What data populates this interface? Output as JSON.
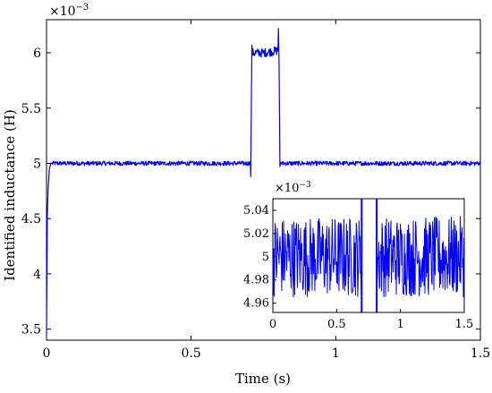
{
  "chart_data": [
    {
      "type": "line",
      "xlabel": "Time (s)",
      "ylabel": "Identified inductance (H)",
      "y_multiplier": "×10",
      "y_exponent": "−3",
      "xlim": [
        0,
        1.5
      ],
      "ylim": [
        3.4,
        6.3
      ],
      "xticks": [
        0,
        0.5,
        1,
        1.5
      ],
      "xtick_labels": [
        "0",
        "0.5",
        "1",
        "1.5"
      ],
      "yticks": [
        3.5,
        4,
        4.5,
        5,
        5.5,
        6
      ],
      "ytick_labels": [
        "3.5",
        "4",
        "4.5",
        "5",
        "5.5",
        "6"
      ],
      "grid": false,
      "color": "#0000ff",
      "series": [
        {
          "x": [
            0,
            0.003,
            0.006,
            0.01,
            0.015,
            0.02,
            0.3,
            0.6,
            0.705,
            0.706,
            0.71,
            0.712,
            0.75,
            0.8,
            0.802,
            0.804,
            0.807,
            0.81,
            0.813,
            1.0,
            1.2,
            1.5
          ],
          "y": [
            3.45,
            4.55,
            4.8,
            4.95,
            5.0,
            5.0,
            5.0,
            5.0,
            5.0,
            4.88,
            6.07,
            6.0,
            6.0,
            6.02,
            6.22,
            5.9,
            4.97,
            5.01,
            5.0,
            5.0,
            5.0,
            5.0
          ],
          "noise_amplitude_low": 0.02,
          "noise_amplitude_high": 0.04
        }
      ]
    },
    {
      "type": "line",
      "inset": true,
      "y_multiplier": "×10",
      "y_exponent": "−3",
      "xlim": [
        0,
        1.5
      ],
      "ylim": [
        4.952,
        5.05
      ],
      "xticks": [
        0,
        0.5,
        1,
        1.5
      ],
      "xtick_labels": [
        "0",
        "0.5",
        "1",
        "1.5"
      ],
      "yticks": [
        4.96,
        4.98,
        5,
        5.02,
        5.04
      ],
      "ytick_labels": [
        "4.96",
        "4.98",
        "5",
        "5.02",
        "5.04"
      ],
      "gap": [
        0.7,
        0.81
      ],
      "noise_center": 5.0,
      "noise_amplitude": 0.035,
      "color": "#0000ff"
    }
  ]
}
